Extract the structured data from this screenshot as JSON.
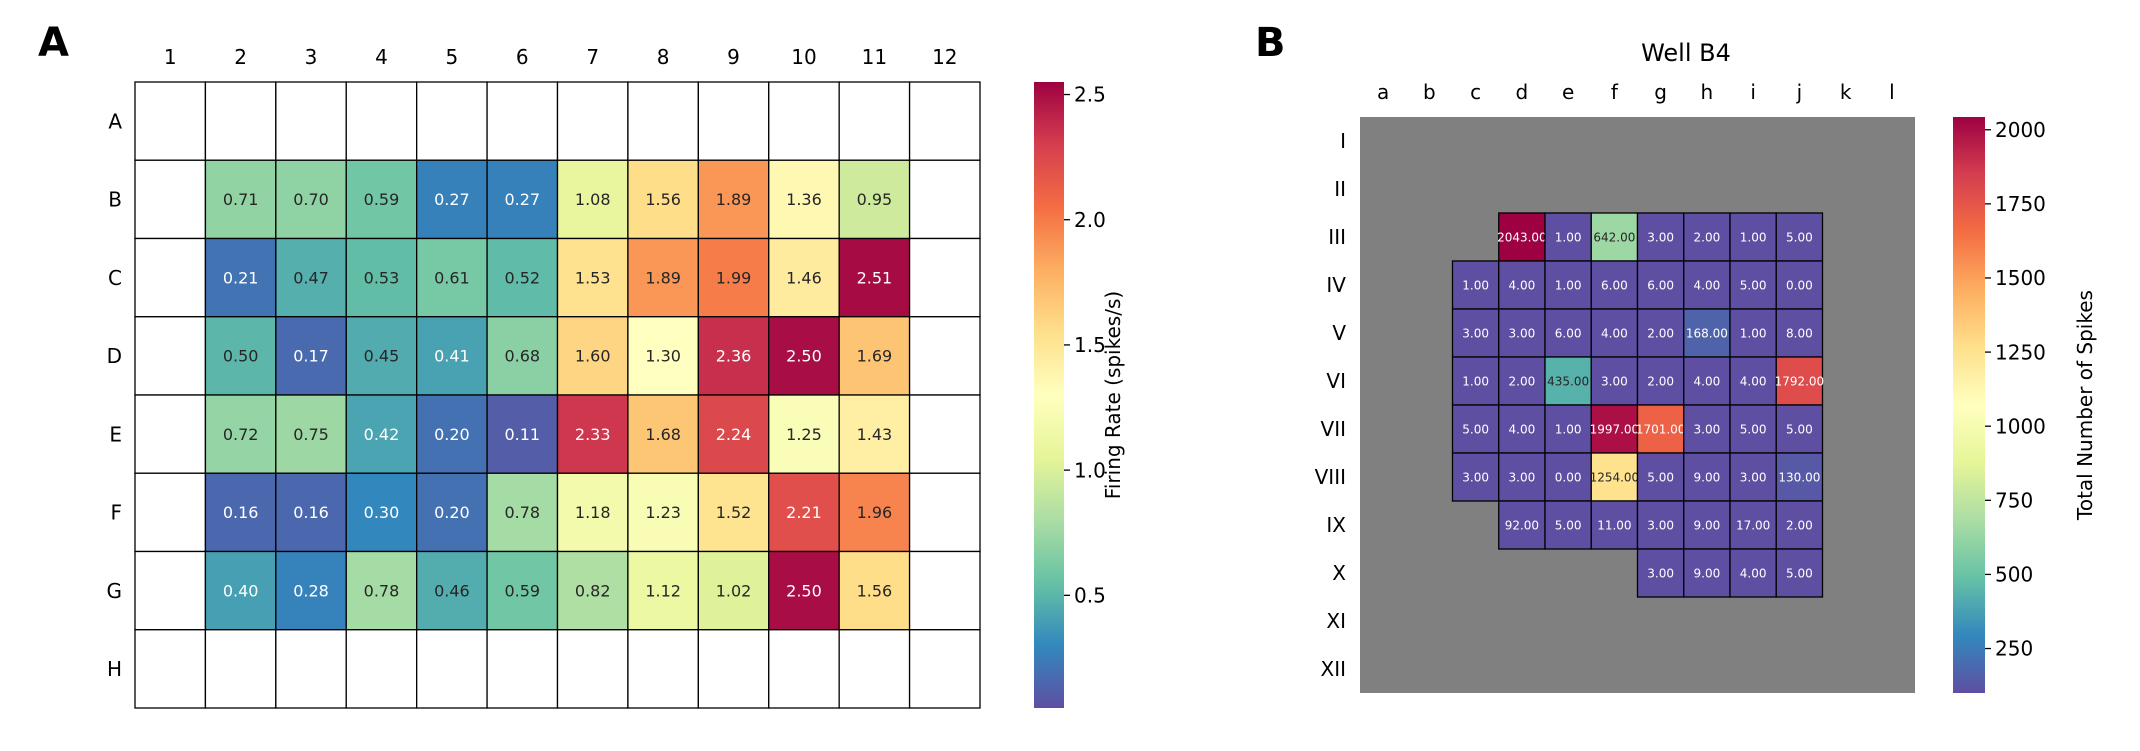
{
  "chart_data": [
    {
      "type": "heatmap",
      "panel_label": "A",
      "title": "",
      "col_labels": [
        "1",
        "2",
        "3",
        "4",
        "5",
        "6",
        "7",
        "8",
        "9",
        "10",
        "11",
        "12"
      ],
      "row_labels": [
        "A",
        "B",
        "C",
        "D",
        "E",
        "F",
        "G",
        "H"
      ],
      "values": [
        [
          null,
          null,
          null,
          null,
          null,
          null,
          null,
          null,
          null,
          null,
          null,
          null
        ],
        [
          null,
          0.71,
          0.7,
          0.59,
          0.27,
          0.27,
          1.08,
          1.56,
          1.89,
          1.36,
          0.95,
          null
        ],
        [
          null,
          0.21,
          0.47,
          0.53,
          0.61,
          0.52,
          1.53,
          1.89,
          1.99,
          1.46,
          2.51,
          null
        ],
        [
          null,
          0.5,
          0.17,
          0.45,
          0.41,
          0.68,
          1.6,
          1.3,
          2.36,
          2.5,
          1.69,
          null
        ],
        [
          null,
          0.72,
          0.75,
          0.42,
          0.2,
          0.11,
          2.33,
          1.68,
          2.24,
          1.25,
          1.43,
          null
        ],
        [
          null,
          0.16,
          0.16,
          0.3,
          0.2,
          0.78,
          1.18,
          1.23,
          1.52,
          2.21,
          1.96,
          null
        ],
        [
          null,
          0.4,
          0.28,
          0.78,
          0.46,
          0.59,
          0.82,
          1.12,
          1.02,
          2.5,
          1.56,
          null
        ],
        [
          null,
          null,
          null,
          null,
          null,
          null,
          null,
          null,
          null,
          null,
          null,
          null
        ]
      ],
      "cell_labels": [
        [
          "",
          "",
          "",
          "",
          "",
          "",
          "",
          "",
          "",
          "",
          "",
          ""
        ],
        [
          "",
          "0.71",
          "0.70",
          "0.59",
          "0.27",
          "0.27",
          "1.08",
          "1.56",
          "1.89",
          "1.36",
          "0.95",
          ""
        ],
        [
          "",
          "0.21",
          "0.47",
          "0.53",
          "0.61",
          "0.52",
          "1.53",
          "1.89",
          "1.99",
          "1.46",
          "2.51",
          ""
        ],
        [
          "",
          "0.50",
          "0.17",
          "0.45",
          "0.41",
          "0.68",
          "1.60",
          "1.30",
          "2.36",
          "2.50",
          "1.69",
          ""
        ],
        [
          "",
          "0.72",
          "0.75",
          "0.42",
          "0.20",
          "0.11",
          "2.33",
          "1.68",
          "2.24",
          "1.25",
          "1.43",
          ""
        ],
        [
          "",
          "0.16",
          "0.16",
          "0.30",
          "0.20",
          "0.78",
          "1.18",
          "1.23",
          "1.52",
          "2.21",
          "1.96",
          ""
        ],
        [
          "",
          "0.40",
          "0.28",
          "0.78",
          "0.46",
          "0.59",
          "0.82",
          "1.12",
          "1.02",
          "2.50",
          "1.56",
          ""
        ],
        [
          "",
          "",
          "",
          "",
          "",
          "",
          "",
          "",
          "",
          "",
          "",
          ""
        ]
      ],
      "missing_color": "#ffffff",
      "colormap": "Spectral_r",
      "colorbar": {
        "label": "Firing Rate (spikes/s)",
        "vmin": 0.05,
        "vmax": 2.55,
        "ticks": [
          0.5,
          1.0,
          1.5,
          2.0,
          2.5
        ],
        "tick_labels": [
          "0.5",
          "1.0",
          "1.5",
          "2.0",
          "2.5"
        ]
      }
    },
    {
      "type": "heatmap",
      "panel_label": "B",
      "title": "Well B4",
      "col_labels": [
        "a",
        "b",
        "c",
        "d",
        "e",
        "f",
        "g",
        "h",
        "i",
        "j",
        "k",
        "l"
      ],
      "row_labels": [
        "I",
        "II",
        "III",
        "IV",
        "V",
        "VI",
        "VII",
        "VIII",
        "IX",
        "X",
        "XI",
        "XII"
      ],
      "values": [
        [
          null,
          null,
          null,
          null,
          null,
          null,
          null,
          null,
          null,
          null,
          null,
          null
        ],
        [
          null,
          null,
          null,
          null,
          null,
          null,
          null,
          null,
          null,
          null,
          null,
          null
        ],
        [
          null,
          null,
          null,
          2043,
          1,
          642,
          3,
          2,
          1,
          5,
          null,
          null
        ],
        [
          null,
          null,
          1,
          4,
          1,
          6,
          6,
          4,
          5,
          0,
          null,
          null
        ],
        [
          null,
          null,
          3,
          3,
          6,
          4,
          2,
          168,
          1,
          8,
          null,
          null
        ],
        [
          null,
          null,
          1,
          2,
          435,
          3,
          2,
          4,
          4,
          1792,
          null,
          null
        ],
        [
          null,
          null,
          5,
          4,
          1,
          1997,
          1701,
          3,
          5,
          5,
          null,
          null
        ],
        [
          null,
          null,
          3,
          3,
          0,
          1254,
          5,
          9,
          3,
          130,
          null,
          null
        ],
        [
          null,
          null,
          null,
          92,
          5,
          11,
          3,
          9,
          17,
          2,
          null,
          null
        ],
        [
          null,
          null,
          null,
          null,
          null,
          null,
          3,
          9,
          4,
          5,
          null,
          null
        ],
        [
          null,
          null,
          null,
          null,
          null,
          null,
          null,
          null,
          null,
          null,
          null,
          null
        ],
        [
          null,
          null,
          null,
          null,
          null,
          null,
          null,
          null,
          null,
          null,
          null,
          null
        ]
      ],
      "cell_labels": [
        [
          "",
          "",
          "",
          "",
          "",
          "",
          "",
          "",
          "",
          "",
          "",
          ""
        ],
        [
          "",
          "",
          "",
          "",
          "",
          "",
          "",
          "",
          "",
          "",
          "",
          ""
        ],
        [
          "",
          "",
          "",
          "2043.00",
          "1.00",
          "642.00",
          "3.00",
          "2.00",
          "1.00",
          "5.00",
          "",
          ""
        ],
        [
          "",
          "",
          "1.00",
          "4.00",
          "1.00",
          "6.00",
          "6.00",
          "4.00",
          "5.00",
          "0.00",
          "",
          ""
        ],
        [
          "",
          "",
          "3.00",
          "3.00",
          "6.00",
          "4.00",
          "2.00",
          "168.00",
          "1.00",
          "8.00",
          "",
          ""
        ],
        [
          "",
          "",
          "1.00",
          "2.00",
          "435.00",
          "3.00",
          "2.00",
          "4.00",
          "4.00",
          "1792.00",
          "",
          ""
        ],
        [
          "",
          "",
          "5.00",
          "4.00",
          "1.00",
          "1997.00",
          "1701.00",
          "3.00",
          "5.00",
          "5.00",
          "",
          ""
        ],
        [
          "",
          "",
          "3.00",
          "3.00",
          "0.00",
          "1254.00",
          "5.00",
          "9.00",
          "3.00",
          "130.00",
          "",
          ""
        ],
        [
          "",
          "",
          "",
          "92.00",
          "5.00",
          "11.00",
          "3.00",
          "9.00",
          "17.00",
          "2.00",
          "",
          ""
        ],
        [
          "",
          "",
          "",
          "",
          "",
          "",
          "3.00",
          "9.00",
          "4.00",
          "5.00",
          "",
          ""
        ],
        [
          "",
          "",
          "",
          "",
          "",
          "",
          "",
          "",
          "",
          "",
          "",
          ""
        ],
        [
          "",
          "",
          "",
          "",
          "",
          "",
          "",
          "",
          "",
          "",
          "",
          ""
        ]
      ],
      "missing_color": "#808080",
      "colormap": "Spectral_r",
      "colorbar": {
        "label": "Total Number of Spikes",
        "vmin": 100,
        "vmax": 2043,
        "ticks": [
          250,
          500,
          750,
          1000,
          1250,
          1500,
          1750,
          2000
        ],
        "tick_labels": [
          "250",
          "500",
          "750",
          "1000",
          "1250",
          "1500",
          "1750",
          "2000"
        ]
      }
    }
  ]
}
